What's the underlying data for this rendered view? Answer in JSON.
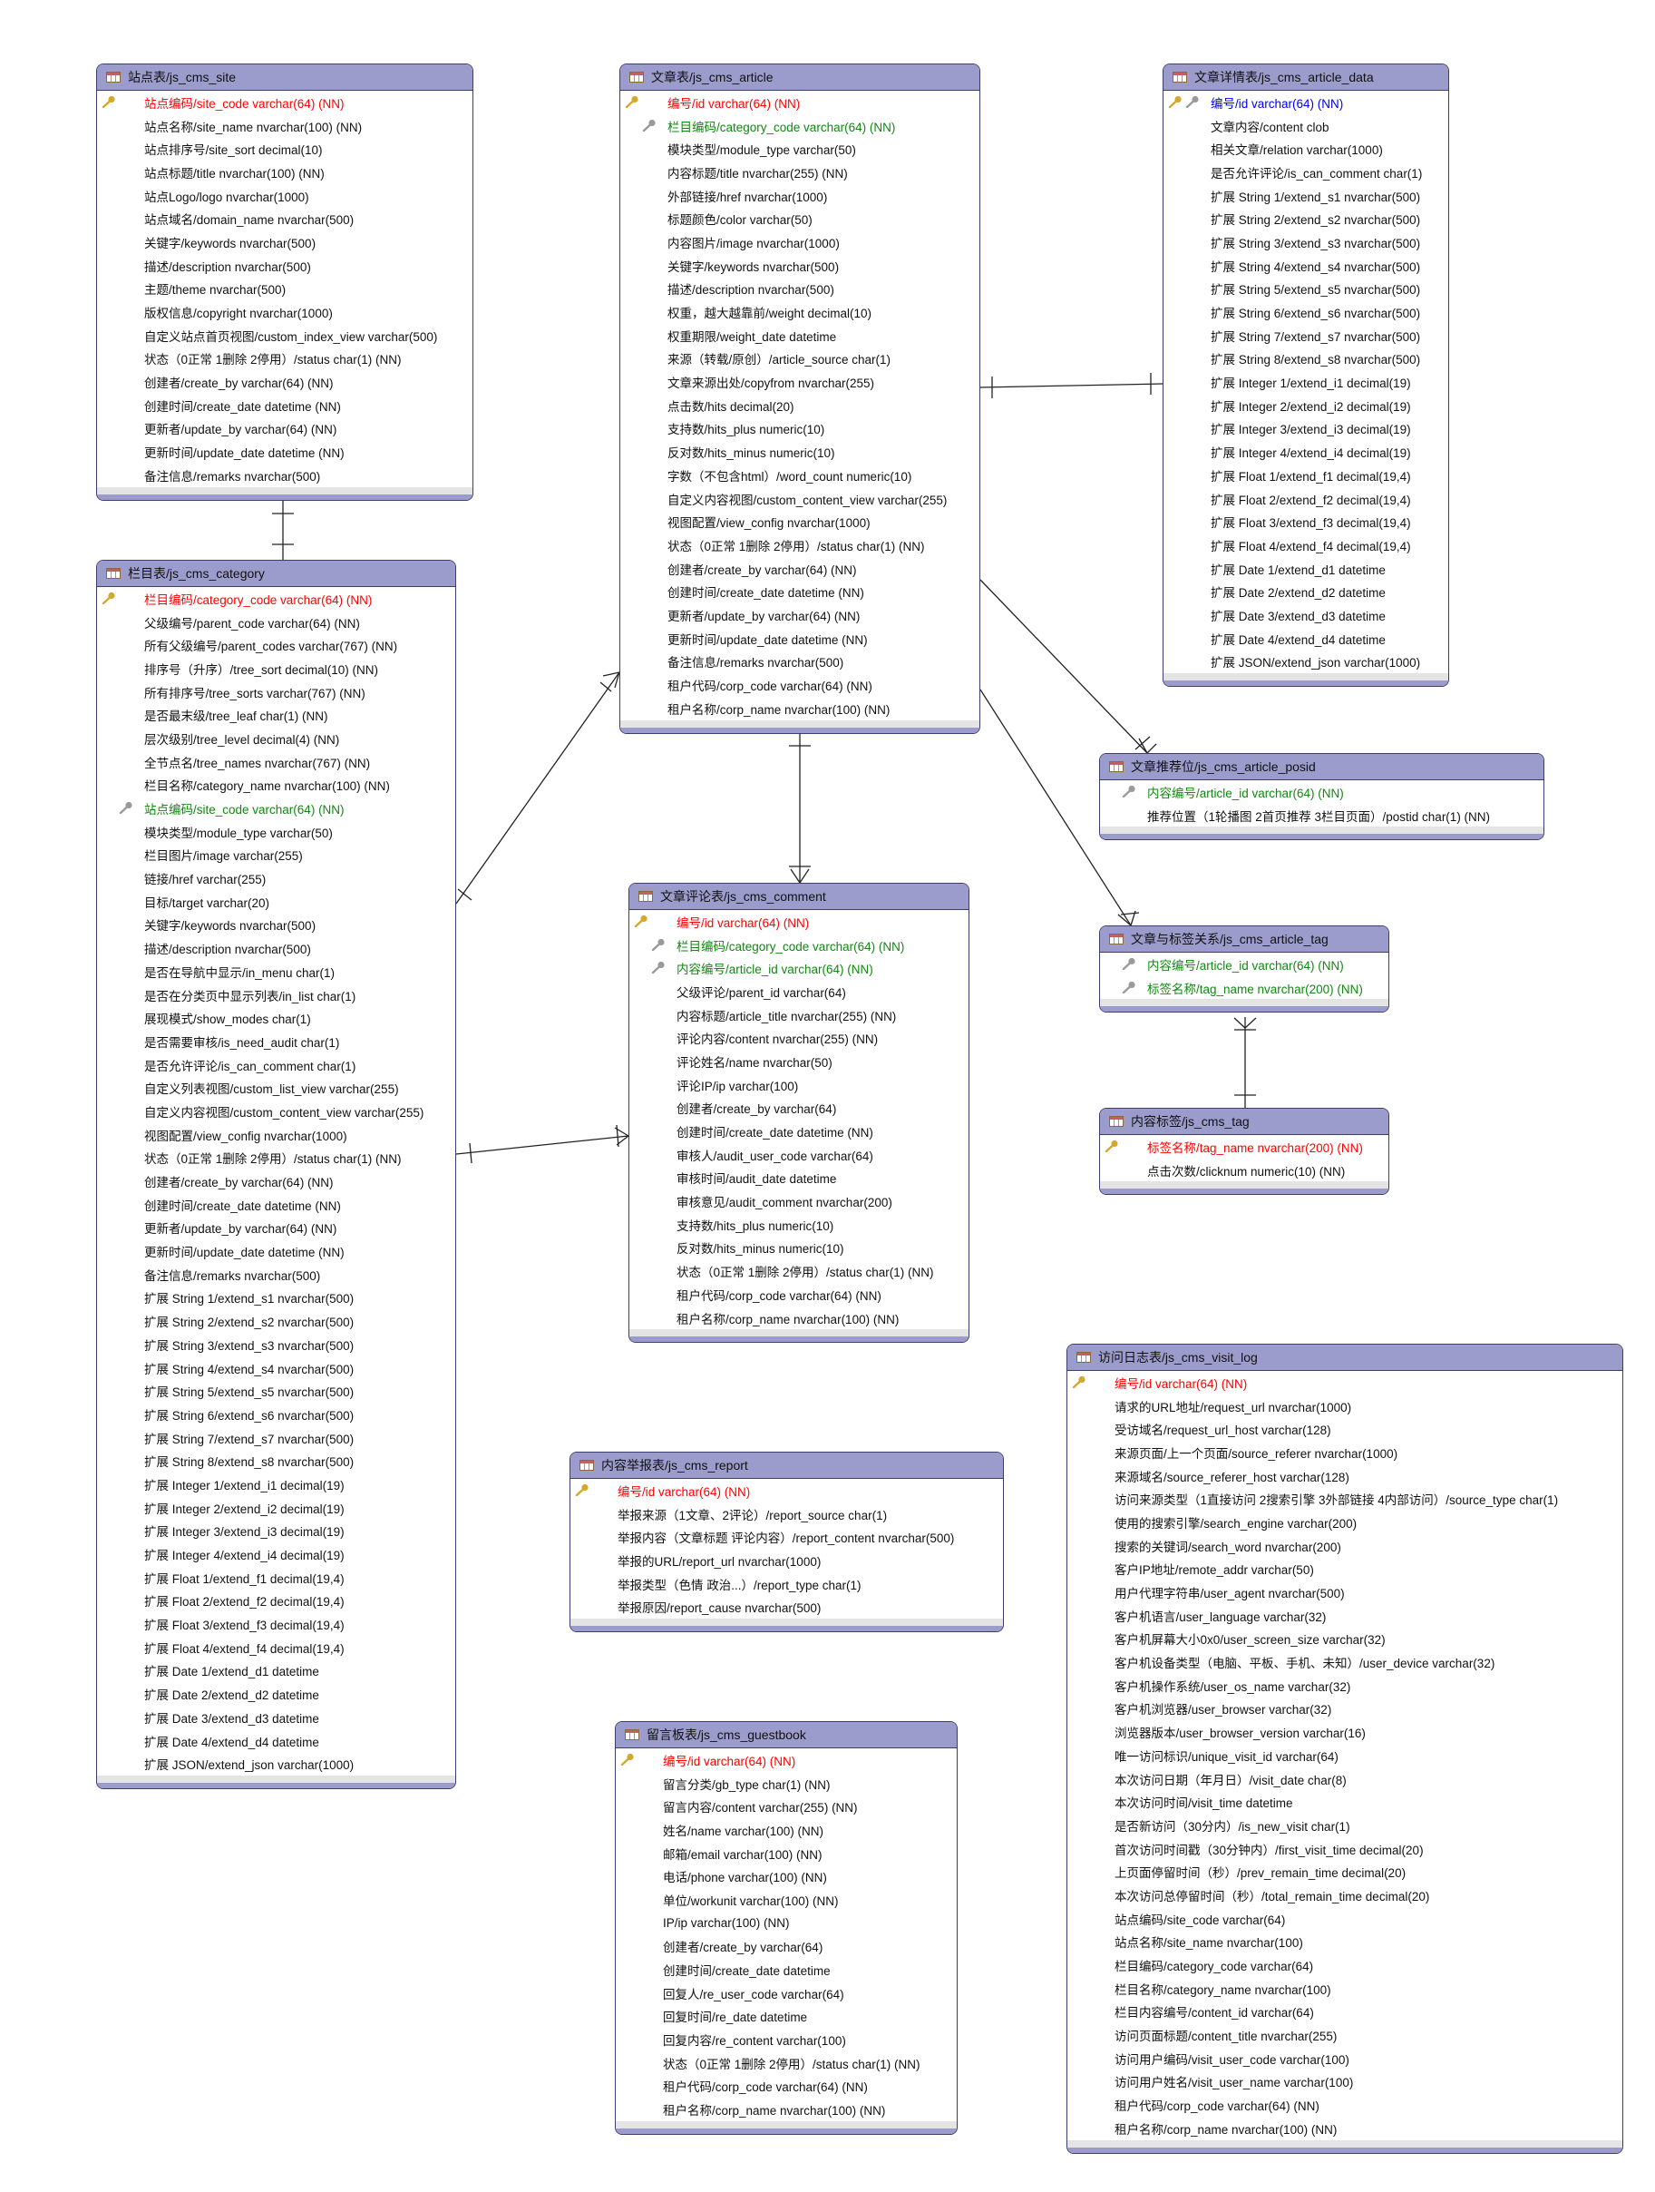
{
  "colors": {
    "header": "#9c9ccc",
    "border": "#3d3d6b",
    "primary_key": "#ff0000",
    "foreign_key": "#118811",
    "primary_foreign_key": "#0000ee"
  },
  "tables": [
    {
      "id": "site",
      "title": "站点表/js_cms_site",
      "rows": [
        {
          "text": "站点编码/site_code varchar(64) (NN)",
          "kind": "pk"
        },
        {
          "text": "站点名称/site_name nvarchar(100) (NN)"
        },
        {
          "text": "站点排序号/site_sort decimal(10)"
        },
        {
          "text": "站点标题/title nvarchar(100) (NN)"
        },
        {
          "text": "站点Logo/logo nvarchar(1000)"
        },
        {
          "text": "站点域名/domain_name nvarchar(500)"
        },
        {
          "text": "关键字/keywords nvarchar(500)"
        },
        {
          "text": "描述/description nvarchar(500)"
        },
        {
          "text": "主题/theme nvarchar(500)"
        },
        {
          "text": "版权信息/copyright nvarchar(1000)"
        },
        {
          "text": "自定义站点首页视图/custom_index_view varchar(500)"
        },
        {
          "text": "状态（0正常 1删除 2停用）/status char(1) (NN)"
        },
        {
          "text": "创建者/create_by varchar(64) (NN)"
        },
        {
          "text": "创建时间/create_date datetime (NN)"
        },
        {
          "text": "更新者/update_by varchar(64) (NN)"
        },
        {
          "text": "更新时间/update_date datetime (NN)"
        },
        {
          "text": "备注信息/remarks nvarchar(500)"
        }
      ]
    },
    {
      "id": "category",
      "title": "栏目表/js_cms_category",
      "rows": [
        {
          "text": "栏目编码/category_code varchar(64) (NN)",
          "kind": "pk"
        },
        {
          "text": "父级编号/parent_code varchar(64) (NN)"
        },
        {
          "text": "所有父级编号/parent_codes varchar(767) (NN)"
        },
        {
          "text": "排序号（升序）/tree_sort decimal(10) (NN)"
        },
        {
          "text": "所有排序号/tree_sorts varchar(767) (NN)"
        },
        {
          "text": "是否最末级/tree_leaf char(1) (NN)"
        },
        {
          "text": "层次级别/tree_level decimal(4) (NN)"
        },
        {
          "text": "全节点名/tree_names nvarchar(767) (NN)"
        },
        {
          "text": "栏目名称/category_name nvarchar(100) (NN)"
        },
        {
          "text": "站点编码/site_code varchar(64) (NN)",
          "kind": "fk"
        },
        {
          "text": "模块类型/module_type varchar(50)"
        },
        {
          "text": "栏目图片/image varchar(255)"
        },
        {
          "text": "链接/href varchar(255)"
        },
        {
          "text": "目标/target varchar(20)"
        },
        {
          "text": "关键字/keywords nvarchar(500)"
        },
        {
          "text": "描述/description nvarchar(500)"
        },
        {
          "text": "是否在导航中显示/in_menu char(1)"
        },
        {
          "text": "是否在分类页中显示列表/in_list char(1)"
        },
        {
          "text": "展现模式/show_modes char(1)"
        },
        {
          "text": "是否需要审核/is_need_audit char(1)"
        },
        {
          "text": "是否允许评论/is_can_comment char(1)"
        },
        {
          "text": "自定义列表视图/custom_list_view varchar(255)"
        },
        {
          "text": "自定义内容视图/custom_content_view varchar(255)"
        },
        {
          "text": "视图配置/view_config nvarchar(1000)"
        },
        {
          "text": "状态（0正常 1删除 2停用）/status char(1) (NN)"
        },
        {
          "text": "创建者/create_by varchar(64) (NN)"
        },
        {
          "text": "创建时间/create_date datetime (NN)"
        },
        {
          "text": "更新者/update_by varchar(64) (NN)"
        },
        {
          "text": "更新时间/update_date datetime (NN)"
        },
        {
          "text": "备注信息/remarks nvarchar(500)"
        },
        {
          "text": "扩展 String 1/extend_s1 nvarchar(500)"
        },
        {
          "text": "扩展 String 2/extend_s2 nvarchar(500)"
        },
        {
          "text": "扩展 String 3/extend_s3 nvarchar(500)"
        },
        {
          "text": "扩展 String 4/extend_s4 nvarchar(500)"
        },
        {
          "text": "扩展 String 5/extend_s5 nvarchar(500)"
        },
        {
          "text": "扩展 String 6/extend_s6 nvarchar(500)"
        },
        {
          "text": "扩展 String 7/extend_s7 nvarchar(500)"
        },
        {
          "text": "扩展 String 8/extend_s8 nvarchar(500)"
        },
        {
          "text": "扩展 Integer 1/extend_i1 decimal(19)"
        },
        {
          "text": "扩展 Integer 2/extend_i2 decimal(19)"
        },
        {
          "text": "扩展 Integer 3/extend_i3 decimal(19)"
        },
        {
          "text": "扩展 Integer 4/extend_i4 decimal(19)"
        },
        {
          "text": "扩展 Float 1/extend_f1 decimal(19,4)"
        },
        {
          "text": "扩展 Float 2/extend_f2 decimal(19,4)"
        },
        {
          "text": "扩展 Float 3/extend_f3 decimal(19,4)"
        },
        {
          "text": "扩展 Float 4/extend_f4 decimal(19,4)"
        },
        {
          "text": "扩展 Date 1/extend_d1 datetime"
        },
        {
          "text": "扩展 Date 2/extend_d2 datetime"
        },
        {
          "text": "扩展 Date 3/extend_d3 datetime"
        },
        {
          "text": "扩展 Date 4/extend_d4 datetime"
        },
        {
          "text": "扩展 JSON/extend_json varchar(1000)"
        }
      ]
    },
    {
      "id": "article",
      "title": "文章表/js_cms_article",
      "rows": [
        {
          "text": "编号/id varchar(64) (NN)",
          "kind": "pk"
        },
        {
          "text": "栏目编码/category_code varchar(64) (NN)",
          "kind": "fk"
        },
        {
          "text": "模块类型/module_type varchar(50)"
        },
        {
          "text": "内容标题/title nvarchar(255) (NN)"
        },
        {
          "text": "外部链接/href nvarchar(1000)"
        },
        {
          "text": "标题颜色/color varchar(50)"
        },
        {
          "text": "内容图片/image nvarchar(1000)"
        },
        {
          "text": "关键字/keywords nvarchar(500)"
        },
        {
          "text": "描述/description nvarchar(500)"
        },
        {
          "text": "权重，越大越靠前/weight decimal(10)"
        },
        {
          "text": "权重期限/weight_date datetime"
        },
        {
          "text": "来源（转载/原创）/article_source char(1)"
        },
        {
          "text": "文章来源出处/copyfrom nvarchar(255)"
        },
        {
          "text": "点击数/hits decimal(20)"
        },
        {
          "text": "支持数/hits_plus numeric(10)"
        },
        {
          "text": "反对数/hits_minus numeric(10)"
        },
        {
          "text": "字数（不包含html）/word_count numeric(10)"
        },
        {
          "text": "自定义内容视图/custom_content_view varchar(255)"
        },
        {
          "text": "视图配置/view_config nvarchar(1000)"
        },
        {
          "text": "状态（0正常 1删除 2停用）/status char(1) (NN)"
        },
        {
          "text": "创建者/create_by varchar(64) (NN)"
        },
        {
          "text": "创建时间/create_date datetime (NN)"
        },
        {
          "text": "更新者/update_by varchar(64) (NN)"
        },
        {
          "text": "更新时间/update_date datetime (NN)"
        },
        {
          "text": "备注信息/remarks nvarchar(500)"
        },
        {
          "text": "租户代码/corp_code varchar(64) (NN)"
        },
        {
          "text": "租户名称/corp_name nvarchar(100) (NN)"
        }
      ]
    },
    {
      "id": "article_data",
      "title": "文章详情表/js_cms_article_data",
      "rows": [
        {
          "text": "编号/id varchar(64) (NN)",
          "kind": "pkfk"
        },
        {
          "text": "文章内容/content clob"
        },
        {
          "text": "相关文章/relation varchar(1000)"
        },
        {
          "text": "是否允许评论/is_can_comment char(1)"
        },
        {
          "text": "扩展 String 1/extend_s1 nvarchar(500)"
        },
        {
          "text": "扩展 String 2/extend_s2 nvarchar(500)"
        },
        {
          "text": "扩展 String 3/extend_s3 nvarchar(500)"
        },
        {
          "text": "扩展 String 4/extend_s4 nvarchar(500)"
        },
        {
          "text": "扩展 String 5/extend_s5 nvarchar(500)"
        },
        {
          "text": "扩展 String 6/extend_s6 nvarchar(500)"
        },
        {
          "text": "扩展 String 7/extend_s7 nvarchar(500)"
        },
        {
          "text": "扩展 String 8/extend_s8 nvarchar(500)"
        },
        {
          "text": "扩展 Integer 1/extend_i1 decimal(19)"
        },
        {
          "text": "扩展 Integer 2/extend_i2 decimal(19)"
        },
        {
          "text": "扩展 Integer 3/extend_i3 decimal(19)"
        },
        {
          "text": "扩展 Integer 4/extend_i4 decimal(19)"
        },
        {
          "text": "扩展 Float 1/extend_f1 decimal(19,4)"
        },
        {
          "text": "扩展 Float 2/extend_f2 decimal(19,4)"
        },
        {
          "text": "扩展 Float 3/extend_f3 decimal(19,4)"
        },
        {
          "text": "扩展 Float 4/extend_f4 decimal(19,4)"
        },
        {
          "text": "扩展 Date 1/extend_d1 datetime"
        },
        {
          "text": "扩展 Date 2/extend_d2 datetime"
        },
        {
          "text": "扩展 Date 3/extend_d3 datetime"
        },
        {
          "text": "扩展 Date 4/extend_d4 datetime"
        },
        {
          "text": "扩展 JSON/extend_json varchar(1000)"
        }
      ]
    },
    {
      "id": "article_posid",
      "title": "文章推荐位/js_cms_article_posid",
      "rows": [
        {
          "text": "内容编号/article_id varchar(64) (NN)",
          "kind": "fk"
        },
        {
          "text": "推荐位置（1轮播图 2首页推荐 3栏目页面）/postid char(1) (NN)"
        }
      ]
    },
    {
      "id": "comment",
      "title": "文章评论表/js_cms_comment",
      "rows": [
        {
          "text": "编号/id varchar(64) (NN)",
          "kind": "pk"
        },
        {
          "text": "栏目编码/category_code varchar(64) (NN)",
          "kind": "fk"
        },
        {
          "text": "内容编号/article_id varchar(64) (NN)",
          "kind": "fk"
        },
        {
          "text": "父级评论/parent_id varchar(64)"
        },
        {
          "text": "内容标题/article_title nvarchar(255) (NN)"
        },
        {
          "text": "评论内容/content nvarchar(255) (NN)"
        },
        {
          "text": "评论姓名/name nvarchar(50)"
        },
        {
          "text": "评论IP/ip varchar(100)"
        },
        {
          "text": "创建者/create_by varchar(64)"
        },
        {
          "text": "创建时间/create_date datetime (NN)"
        },
        {
          "text": "审核人/audit_user_code varchar(64)"
        },
        {
          "text": "审核时间/audit_date datetime"
        },
        {
          "text": "审核意见/audit_comment nvarchar(200)"
        },
        {
          "text": "支持数/hits_plus numeric(10)"
        },
        {
          "text": "反对数/hits_minus numeric(10)"
        },
        {
          "text": "状态（0正常 1删除 2停用）/status char(1) (NN)"
        },
        {
          "text": "租户代码/corp_code varchar(64) (NN)"
        },
        {
          "text": "租户名称/corp_name nvarchar(100) (NN)"
        }
      ]
    },
    {
      "id": "article_tag",
      "title": "文章与标签关系/js_cms_article_tag",
      "rows": [
        {
          "text": "内容编号/article_id varchar(64) (NN)",
          "kind": "fk"
        },
        {
          "text": "标签名称/tag_name nvarchar(200) (NN)",
          "kind": "fk"
        }
      ]
    },
    {
      "id": "tag",
      "title": "内容标签/js_cms_tag",
      "rows": [
        {
          "text": "标签名称/tag_name nvarchar(200) (NN)",
          "kind": "pk"
        },
        {
          "text": "点击次数/clicknum numeric(10) (NN)"
        }
      ]
    },
    {
      "id": "visit_log",
      "title": "访问日志表/js_cms_visit_log",
      "rows": [
        {
          "text": "编号/id varchar(64) (NN)",
          "kind": "pk"
        },
        {
          "text": "请求的URL地址/request_url nvarchar(1000)"
        },
        {
          "text": "受访域名/request_url_host varchar(128)"
        },
        {
          "text": "来源页面/上一个页面/source_referer nvarchar(1000)"
        },
        {
          "text": "来源域名/source_referer_host varchar(128)"
        },
        {
          "text": "访问来源类型（1直接访问 2搜索引擎 3外部链接 4内部访问）/source_type char(1)"
        },
        {
          "text": "使用的搜索引擎/search_engine varchar(200)"
        },
        {
          "text": "搜索的关键词/search_word nvarchar(200)"
        },
        {
          "text": "客户IP地址/remote_addr varchar(50)"
        },
        {
          "text": "用户代理字符串/user_agent nvarchar(500)"
        },
        {
          "text": "客户机语言/user_language varchar(32)"
        },
        {
          "text": "客户机屏幕大小0x0/user_screen_size varchar(32)"
        },
        {
          "text": "客户机设备类型（电脑、平板、手机、未知）/user_device varchar(32)"
        },
        {
          "text": "客户机操作系统/user_os_name varchar(32)"
        },
        {
          "text": "客户机浏览器/user_browser varchar(32)"
        },
        {
          "text": "浏览器版本/user_browser_version varchar(16)"
        },
        {
          "text": "唯一访问标识/unique_visit_id varchar(64)"
        },
        {
          "text": "本次访问日期（年月日）/visit_date char(8)"
        },
        {
          "text": "本次访问时间/visit_time datetime"
        },
        {
          "text": "是否新访问（30分内）/is_new_visit char(1)"
        },
        {
          "text": "首次访问时间戳（30分钟内）/first_visit_time decimal(20)"
        },
        {
          "text": "上页面停留时间（秒）/prev_remain_time decimal(20)"
        },
        {
          "text": "本次访问总停留时间（秒）/total_remain_time decimal(20)"
        },
        {
          "text": "站点编码/site_code varchar(64)"
        },
        {
          "text": "站点名称/site_name nvarchar(100)"
        },
        {
          "text": "栏目编码/category_code varchar(64)"
        },
        {
          "text": "栏目名称/category_name nvarchar(100)"
        },
        {
          "text": "栏目内容编号/content_id varchar(64)"
        },
        {
          "text": "访问页面标题/content_title nvarchar(255)"
        },
        {
          "text": "访问用户编码/visit_user_code varchar(100)"
        },
        {
          "text": "访问用户姓名/visit_user_name varchar(100)"
        },
        {
          "text": "租户代码/corp_code varchar(64) (NN)"
        },
        {
          "text": "租户名称/corp_name nvarchar(100) (NN)"
        }
      ]
    },
    {
      "id": "report",
      "title": "内容举报表/js_cms_report",
      "rows": [
        {
          "text": "编号/id varchar(64) (NN)",
          "kind": "pk"
        },
        {
          "text": "举报来源（1文章、2评论）/report_source char(1)"
        },
        {
          "text": "举报内容（文章标题 评论内容）/report_content nvarchar(500)"
        },
        {
          "text": "举报的URL/report_url nvarchar(1000)"
        },
        {
          "text": "举报类型（色情 政治...）/report_type char(1)"
        },
        {
          "text": "举报原因/report_cause nvarchar(500)"
        }
      ]
    },
    {
      "id": "guestbook",
      "title": "留言板表/js_cms_guestbook",
      "rows": [
        {
          "text": "编号/id varchar(64) (NN)",
          "kind": "pk"
        },
        {
          "text": "留言分类/gb_type char(1) (NN)"
        },
        {
          "text": "留言内容/content varchar(255) (NN)"
        },
        {
          "text": "姓名/name varchar(100) (NN)"
        },
        {
          "text": "邮箱/email varchar(100) (NN)"
        },
        {
          "text": "电话/phone varchar(100) (NN)"
        },
        {
          "text": "单位/workunit varchar(100) (NN)"
        },
        {
          "text": "IP/ip varchar(100) (NN)"
        },
        {
          "text": "创建者/create_by varchar(64)"
        },
        {
          "text": "创建时间/create_date datetime"
        },
        {
          "text": "回复人/re_user_code varchar(64)"
        },
        {
          "text": "回复时间/re_date datetime"
        },
        {
          "text": "回复内容/re_content varchar(100)"
        },
        {
          "text": "状态（0正常 1删除 2停用）/status char(1) (NN)"
        },
        {
          "text": "租户代码/corp_code varchar(64) (NN)"
        },
        {
          "text": "租户名称/corp_name nvarchar(100) (NN)"
        }
      ]
    }
  ]
}
